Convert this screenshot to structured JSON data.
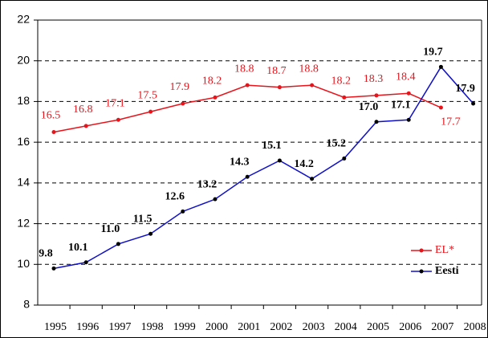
{
  "chart_data": {
    "type": "line",
    "categories": [
      "1995",
      "1996",
      "1997",
      "1998",
      "1999",
      "2000",
      "2001",
      "2002",
      "2003",
      "2004",
      "2005",
      "2006",
      "2007",
      "2008"
    ],
    "series": [
      {
        "name": "EL*",
        "color": "#e8141b",
        "values": [
          16.5,
          16.8,
          17.1,
          17.5,
          17.9,
          18.2,
          18.8,
          18.7,
          18.8,
          18.2,
          18.3,
          18.4,
          17.7,
          null
        ],
        "value_labels": [
          "16.5",
          "16.8",
          "17.1",
          "17.5",
          "17.9",
          "18.2",
          "18.8",
          "18.7",
          "18.8",
          "18.2",
          "18.3",
          "18.4",
          "17.7",
          null
        ]
      },
      {
        "name": "Eesti",
        "color": "#1010c8",
        "values": [
          9.8,
          10.1,
          11.0,
          11.5,
          12.6,
          13.2,
          14.3,
          15.1,
          14.2,
          15.2,
          17.0,
          17.1,
          19.7,
          17.9
        ],
        "value_labels": [
          "9.8",
          "10.1",
          "11.0",
          "11.5",
          "12.6",
          "13.2",
          "14.3",
          "15.1",
          "14.2",
          "15.2",
          "17.0",
          "17.1",
          "19.7",
          "17.9"
        ]
      }
    ],
    "ylim": [
      8,
      22
    ],
    "yticks": [
      8,
      10,
      12,
      14,
      16,
      18,
      20,
      22
    ],
    "grid": true,
    "legend": "lower right"
  }
}
